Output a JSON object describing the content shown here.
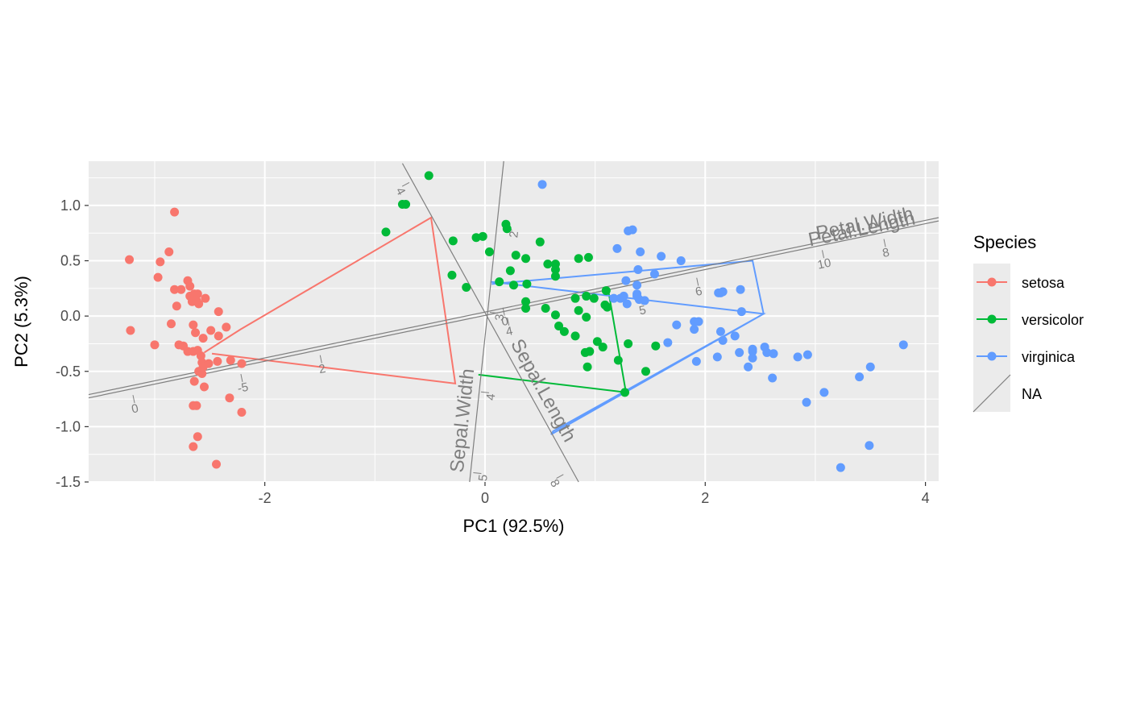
{
  "chart_data": {
    "type": "scatter",
    "title": "",
    "xlabel": "PC1 (92.5%)",
    "ylabel": "PC2 (5.3%)",
    "xlim": [
      -3.6,
      4.12
    ],
    "ylim": [
      -1.5,
      1.4
    ],
    "x_ticks": [
      -2,
      0,
      2,
      4
    ],
    "y_ticks": [
      1.0,
      0.5,
      0.0,
      -0.5,
      -1.0,
      -1.5
    ],
    "x_tick_labels": [
      "-2",
      "0",
      "2",
      "4"
    ],
    "y_tick_labels": [
      "1.0",
      "0.5",
      "0.0",
      "-0.5",
      "-1.0",
      "-1.5"
    ],
    "grid": true,
    "legend_position": "right",
    "legend_title": "Species",
    "legend_entries": [
      "setosa",
      "versicolor",
      "virginica",
      "NA"
    ],
    "axis_color": "#7f7f7f",
    "series": [
      {
        "name": "setosa",
        "color": "#F8766D",
        "points": [
          [
            -3.23,
            0.51
          ],
          [
            -2.95,
            0.49
          ],
          [
            -2.97,
            0.35
          ],
          [
            -2.87,
            0.58
          ],
          [
            -2.82,
            0.94
          ],
          [
            -2.82,
            0.24
          ],
          [
            -2.8,
            0.09
          ],
          [
            -2.76,
            0.24
          ],
          [
            -2.7,
            0.32
          ],
          [
            -2.68,
            0.27
          ],
          [
            -2.68,
            0.18
          ],
          [
            -2.66,
            0.13
          ],
          [
            -2.64,
            0.2
          ],
          [
            -2.61,
            0.2
          ],
          [
            -2.6,
            0.11
          ],
          [
            -2.62,
            0.14
          ],
          [
            -2.54,
            0.16
          ],
          [
            -2.42,
            0.04
          ],
          [
            -2.85,
            -0.07
          ],
          [
            -2.65,
            -0.08
          ],
          [
            -2.63,
            -0.15
          ],
          [
            -2.56,
            -0.2
          ],
          [
            -2.49,
            -0.13
          ],
          [
            -2.42,
            -0.18
          ],
          [
            -2.35,
            -0.1
          ],
          [
            -2.74,
            -0.27
          ],
          [
            -2.7,
            -0.32
          ],
          [
            -2.65,
            -0.32
          ],
          [
            -2.61,
            -0.31
          ],
          [
            -2.58,
            -0.36
          ],
          [
            -2.57,
            -0.42
          ],
          [
            -2.56,
            -0.46
          ],
          [
            -2.6,
            -0.5
          ],
          [
            -2.57,
            -0.52
          ],
          [
            -2.51,
            -0.43
          ],
          [
            -2.43,
            -0.41
          ],
          [
            -2.31,
            -0.4
          ],
          [
            -2.21,
            -0.43
          ],
          [
            -2.64,
            -0.59
          ],
          [
            -2.55,
            -0.64
          ],
          [
            -2.32,
            -0.74
          ],
          [
            -2.21,
            -0.87
          ],
          [
            -2.65,
            -0.81
          ],
          [
            -2.62,
            -0.81
          ],
          [
            -3.22,
            -0.13
          ],
          [
            -2.61,
            -1.09
          ],
          [
            -2.65,
            -1.18
          ],
          [
            -2.44,
            -1.34
          ],
          [
            -3.0,
            -0.26
          ],
          [
            -2.78,
            -0.26
          ]
        ],
        "hull": [
          [
            -2.55,
            -0.33
          ],
          [
            -2.22,
            -0.12
          ],
          [
            -0.49,
            0.89
          ],
          [
            -0.27,
            -0.61
          ],
          [
            -2.48,
            -0.34
          ]
        ]
      },
      {
        "name": "versicolor",
        "color": "#00BA38",
        "points": [
          [
            -0.51,
            1.27
          ],
          [
            -0.72,
            1.01
          ],
          [
            -0.75,
            1.01
          ],
          [
            -0.9,
            0.76
          ],
          [
            -0.29,
            0.68
          ],
          [
            -0.08,
            0.71
          ],
          [
            -0.02,
            0.72
          ],
          [
            0.19,
            0.83
          ],
          [
            0.2,
            0.79
          ],
          [
            0.5,
            0.67
          ],
          [
            0.04,
            0.58
          ],
          [
            -0.3,
            0.37
          ],
          [
            -0.17,
            0.26
          ],
          [
            0.13,
            0.31
          ],
          [
            0.23,
            0.41
          ],
          [
            0.28,
            0.55
          ],
          [
            0.37,
            0.52
          ],
          [
            0.57,
            0.47
          ],
          [
            0.64,
            0.42
          ],
          [
            0.64,
            0.36
          ],
          [
            0.85,
            0.52
          ],
          [
            0.94,
            0.53
          ],
          [
            0.26,
            0.28
          ],
          [
            0.38,
            0.29
          ],
          [
            0.37,
            0.13
          ],
          [
            0.37,
            0.07
          ],
          [
            0.55,
            0.07
          ],
          [
            0.82,
            0.16
          ],
          [
            0.92,
            0.18
          ],
          [
            0.99,
            0.16
          ],
          [
            1.09,
            0.1
          ],
          [
            1.1,
            0.23
          ],
          [
            1.11,
            0.08
          ],
          [
            0.85,
            0.05
          ],
          [
            0.64,
            0.01
          ],
          [
            0.92,
            -0.01
          ],
          [
            0.67,
            -0.09
          ],
          [
            0.72,
            -0.14
          ],
          [
            0.82,
            -0.18
          ],
          [
            1.02,
            -0.23
          ],
          [
            1.07,
            -0.28
          ],
          [
            0.95,
            -0.32
          ],
          [
            0.91,
            -0.33
          ],
          [
            0.93,
            -0.46
          ],
          [
            1.21,
            -0.4
          ],
          [
            1.3,
            -0.25
          ],
          [
            1.55,
            -0.27
          ],
          [
            1.46,
            -0.5
          ],
          [
            1.27,
            -0.69
          ],
          [
            0.64,
            0.47
          ]
        ],
        "hull": [
          [
            -0.06,
            -0.53
          ],
          [
            1.28,
            -0.69
          ],
          [
            1.12,
            0.23
          ]
        ]
      },
      {
        "name": "virginica",
        "color": "#619CFF",
        "points": [
          [
            0.52,
            1.19
          ],
          [
            1.3,
            0.77
          ],
          [
            1.34,
            0.78
          ],
          [
            1.41,
            0.58
          ],
          [
            1.2,
            0.61
          ],
          [
            1.6,
            0.54
          ],
          [
            1.78,
            0.5
          ],
          [
            1.54,
            0.38
          ],
          [
            1.39,
            0.42
          ],
          [
            1.28,
            0.32
          ],
          [
            1.38,
            0.28
          ],
          [
            1.38,
            0.2
          ],
          [
            1.38,
            0.18
          ],
          [
            1.4,
            0.15
          ],
          [
            1.45,
            0.14
          ],
          [
            1.26,
            0.18
          ],
          [
            1.23,
            0.16
          ],
          [
            1.29,
            0.11
          ],
          [
            1.17,
            0.16
          ],
          [
            2.12,
            0.21
          ],
          [
            2.14,
            0.21
          ],
          [
            2.16,
            0.22
          ],
          [
            2.32,
            0.24
          ],
          [
            2.33,
            0.04
          ],
          [
            1.9,
            -0.05
          ],
          [
            1.94,
            -0.05
          ],
          [
            1.9,
            -0.12
          ],
          [
            1.74,
            -0.08
          ],
          [
            1.66,
            -0.24
          ],
          [
            2.14,
            -0.14
          ],
          [
            2.16,
            -0.22
          ],
          [
            2.27,
            -0.18
          ],
          [
            2.43,
            -0.3
          ],
          [
            2.43,
            -0.32
          ],
          [
            2.54,
            -0.28
          ],
          [
            2.56,
            -0.33
          ],
          [
            2.62,
            -0.34
          ],
          [
            2.31,
            -0.33
          ],
          [
            2.11,
            -0.37
          ],
          [
            2.43,
            -0.38
          ],
          [
            2.39,
            -0.46
          ],
          [
            2.61,
            -0.56
          ],
          [
            1.92,
            -0.41
          ],
          [
            2.84,
            -0.37
          ],
          [
            2.93,
            -0.35
          ],
          [
            3.8,
            -0.26
          ],
          [
            3.5,
            -0.46
          ],
          [
            3.4,
            -0.55
          ],
          [
            3.08,
            -0.69
          ],
          [
            2.92,
            -0.78
          ],
          [
            3.49,
            -1.17
          ],
          [
            3.23,
            -1.37
          ]
        ],
        "hull": [
          [
            0.05,
            0.31
          ],
          [
            2.53,
            0.02
          ],
          [
            0.6,
            -1.07
          ],
          [
            0.62,
            -1.04
          ],
          [
            2.53,
            0.02
          ],
          [
            2.43,
            0.5
          ],
          [
            0.06,
            0.29
          ]
        ]
      }
    ],
    "axes_vectors": [
      {
        "name": "Sepal.Length",
        "from": [
          -0.75,
          1.38
        ],
        "to": [
          0.85,
          -1.5
        ],
        "ticks": [
          {
            "label": "4",
            "at": [
              -0.72,
              1.19
            ]
          },
          {
            "label": "8",
            "at": [
              0.68,
              -1.45
            ]
          }
        ]
      },
      {
        "name": "Sepal.Width",
        "from": [
          -0.14,
          -1.5
        ],
        "to": [
          0.17,
          1.4
        ],
        "ticks": [
          {
            "label": "2",
            "at": [
              0.21,
              0.78
            ]
          },
          {
            "label": "3",
            "at": [
              0.08,
              0.03
            ]
          },
          {
            "label": "4",
            "at": [
              0.0,
              -0.69
            ]
          },
          {
            "label": "5",
            "at": [
              -0.07,
              -1.42
            ]
          }
        ]
      },
      {
        "name": "Petal.Length",
        "from": [
          -3.6,
          -0.74
        ],
        "to": [
          4.12,
          0.86
        ],
        "ticks": [
          {
            "label": "0",
            "at": [
              -3.19,
              -0.75
            ]
          },
          {
            "label": "2",
            "at": [
              -1.49,
              -0.39
            ]
          },
          {
            "label": "4",
            "at": [
              0.21,
              -0.05
            ]
          },
          {
            "label": "6",
            "at": [
              1.93,
              0.31
            ]
          },
          {
            "label": "8",
            "at": [
              3.63,
              0.66
            ]
          }
        ]
      },
      {
        "name": "Petal.Width",
        "from": [
          -3.6,
          -0.71
        ],
        "to": [
          4.12,
          0.89
        ],
        "ticks": [
          {
            "label": "-5",
            "at": [
              -2.21,
              -0.56
            ]
          },
          {
            "label": "0",
            "at": [
              0.17,
              0.04
            ]
          },
          {
            "label": "5",
            "at": [
              1.42,
              0.14
            ]
          },
          {
            "label": "10",
            "at": [
              3.07,
              0.56
            ]
          }
        ]
      }
    ]
  }
}
